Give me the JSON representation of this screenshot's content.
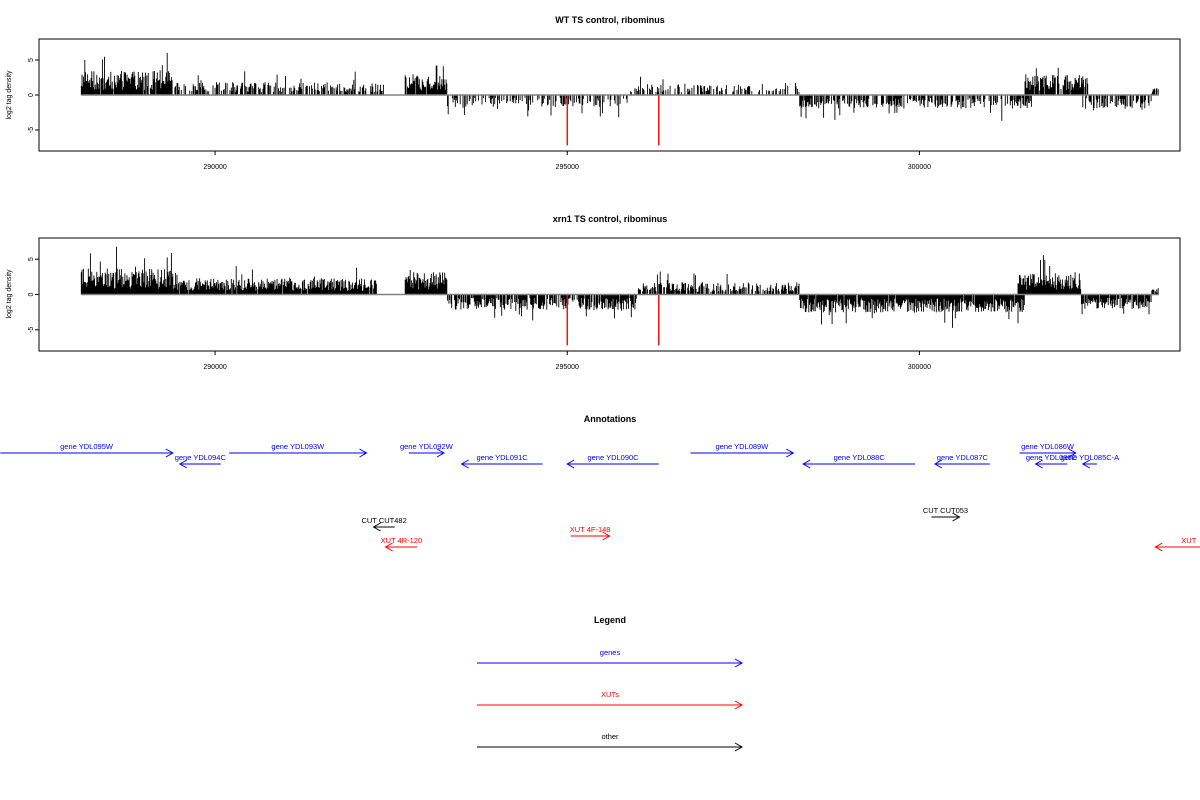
{
  "chart_data": [
    {
      "type": "bar",
      "title": "WT TS control, ribominus",
      "ylabel": "log2 tag density",
      "xlabel": "",
      "xlim": [
        287500,
        303700
      ],
      "ylim": [
        -8,
        8
      ],
      "xticks": [
        290000,
        295000,
        300000
      ],
      "xtick_labels": [
        "290000",
        "295000",
        "300000"
      ],
      "yticks": [
        -5,
        0,
        5
      ],
      "ytick_labels": [
        "-5",
        "0",
        "5"
      ],
      "colors": {
        "bars": "#000000",
        "highlight": "#ff0000",
        "axis": "#808080"
      },
      "segments": [
        {
          "from": 288100,
          "to": 289400,
          "sign": 1,
          "amp": 3.0,
          "max": 7.0,
          "density": 0.95
        },
        {
          "from": 289400,
          "to": 292400,
          "sign": 1,
          "amp": 1.6,
          "max": 3.6,
          "density": 0.55
        },
        {
          "from": 292700,
          "to": 293300,
          "sign": 1,
          "amp": 2.6,
          "max": 4.2,
          "density": 0.9
        },
        {
          "from": 293300,
          "to": 295900,
          "sign": -1,
          "amp": 1.5,
          "max": 4.0,
          "density": 0.45
        },
        {
          "from": 295900,
          "to": 298300,
          "sign": 1,
          "amp": 1.4,
          "max": 3.0,
          "density": 0.4
        },
        {
          "from": 298300,
          "to": 301600,
          "sign": -1,
          "amp": 1.7,
          "max": 4.5,
          "density": 0.6
        },
        {
          "from": 301500,
          "to": 302400,
          "sign": 1,
          "amp": 2.5,
          "max": 4.6,
          "density": 0.85
        },
        {
          "from": 302300,
          "to": 303300,
          "sign": -1,
          "amp": 1.7,
          "max": 3.8,
          "density": 0.6
        },
        {
          "from": 303300,
          "to": 303400,
          "sign": 1,
          "amp": 0.8,
          "max": 1.0,
          "density": 0.9
        }
      ],
      "highlight": [
        {
          "x": 295000,
          "y": -7.2
        },
        {
          "x": 296300,
          "y": -7.2
        }
      ]
    },
    {
      "type": "bar",
      "title": "xrn1 TS control, ribominus",
      "ylabel": "log2 tag density",
      "xlabel": "",
      "xlim": [
        287500,
        303700
      ],
      "ylim": [
        -8,
        8
      ],
      "xticks": [
        290000,
        295000,
        300000
      ],
      "xtick_labels": [
        "290000",
        "295000",
        "300000"
      ],
      "yticks": [
        -5,
        0,
        5
      ],
      "ytick_labels": [
        "-5",
        "0",
        "5"
      ],
      "colors": {
        "bars": "#000000",
        "highlight": "#ff0000",
        "axis": "#808080"
      },
      "segments": [
        {
          "from": 288100,
          "to": 289400,
          "sign": 1,
          "amp": 3.2,
          "max": 7.2,
          "density": 1.0
        },
        {
          "from": 289400,
          "to": 292300,
          "sign": 1,
          "amp": 2.0,
          "max": 5.4,
          "density": 0.95
        },
        {
          "from": 292700,
          "to": 293300,
          "sign": 1,
          "amp": 2.8,
          "max": 5.5,
          "density": 1.0
        },
        {
          "from": 293300,
          "to": 296000,
          "sign": -1,
          "amp": 1.9,
          "max": 7.0,
          "density": 0.8
        },
        {
          "from": 296000,
          "to": 298300,
          "sign": 1,
          "amp": 1.5,
          "max": 3.8,
          "density": 0.7
        },
        {
          "from": 298300,
          "to": 301500,
          "sign": -1,
          "amp": 2.2,
          "max": 6.5,
          "density": 0.95
        },
        {
          "from": 301400,
          "to": 302300,
          "sign": 1,
          "amp": 2.6,
          "max": 5.8,
          "density": 1.0
        },
        {
          "from": 302300,
          "to": 303300,
          "sign": -1,
          "amp": 1.8,
          "max": 4.5,
          "density": 0.9
        },
        {
          "from": 303300,
          "to": 303400,
          "sign": 1,
          "amp": 0.8,
          "max": 1.0,
          "density": 0.9
        }
      ],
      "highlight": [
        {
          "x": 295000,
          "y": -7.2
        },
        {
          "x": 296300,
          "y": -7.2
        }
      ]
    }
  ],
  "annotations": {
    "title": "Annotations",
    "xlim": [
      287500,
      303700
    ],
    "colors": {
      "genes": "#0000ff",
      "XUTs": "#ff0000",
      "other": "#000000"
    },
    "features": [
      {
        "label": "gene YDL095W",
        "start": 286950,
        "end": 289400,
        "strand": "+",
        "type": "genes",
        "row": 0
      },
      {
        "label": "gene YDL094C",
        "start": 289500,
        "end": 290080,
        "strand": "-",
        "type": "genes",
        "row": 1
      },
      {
        "label": "gene YDL093W",
        "start": 290200,
        "end": 292150,
        "strand": "+",
        "type": "genes",
        "row": 0
      },
      {
        "label": "gene YDL092W",
        "start": 292750,
        "end": 293250,
        "strand": "+",
        "type": "genes",
        "row": 0
      },
      {
        "label": "gene YDL091C",
        "start": 293500,
        "end": 294650,
        "strand": "-",
        "type": "genes",
        "row": 1
      },
      {
        "label": "gene YDL090C",
        "start": 295000,
        "end": 296300,
        "strand": "-",
        "type": "genes",
        "row": 1
      },
      {
        "label": "gene YDL089W",
        "start": 296750,
        "end": 298210,
        "strand": "+",
        "type": "genes",
        "row": 0
      },
      {
        "label": "gene YDL088C",
        "start": 298350,
        "end": 299940,
        "strand": "-",
        "type": "genes",
        "row": 1
      },
      {
        "label": "gene YDL087C",
        "start": 300220,
        "end": 301000,
        "strand": "-",
        "type": "genes",
        "row": 1
      },
      {
        "label": "gene YDL086W",
        "start": 301420,
        "end": 302220,
        "strand": "+",
        "type": "genes",
        "row": 0
      },
      {
        "label": "gene YDL086C",
        "start": 301650,
        "end": 302100,
        "strand": "-",
        "type": "genes",
        "row": 1
      },
      {
        "label": "gene YDL085C-A",
        "start": 302320,
        "end": 302520,
        "strand": "-",
        "type": "genes",
        "row": 1
      },
      {
        "label": "CUT CUT482",
        "start": 292250,
        "end": 292550,
        "strand": "-",
        "type": "other",
        "row": 2
      },
      {
        "label": "CUT CUT053",
        "start": 300170,
        "end": 300570,
        "strand": "+",
        "type": "other",
        "row": 3
      },
      {
        "label": "XUT 4R-120",
        "start": 292420,
        "end": 292870,
        "strand": "-",
        "type": "XUTs",
        "row": 4
      },
      {
        "label": "XUT 4F-148",
        "start": 295050,
        "end": 295600,
        "strand": "+",
        "type": "XUTs",
        "row": 5
      },
      {
        "label": "XUT",
        "start": 303350,
        "end": 304300,
        "strand": "-",
        "type": "XUTs",
        "row": 4
      }
    ]
  },
  "legend": {
    "title": "Legend",
    "items": [
      {
        "label": "genes",
        "key": "genes"
      },
      {
        "label": "XUTs",
        "key": "XUTs"
      },
      {
        "label": "other",
        "key": "other"
      }
    ]
  }
}
